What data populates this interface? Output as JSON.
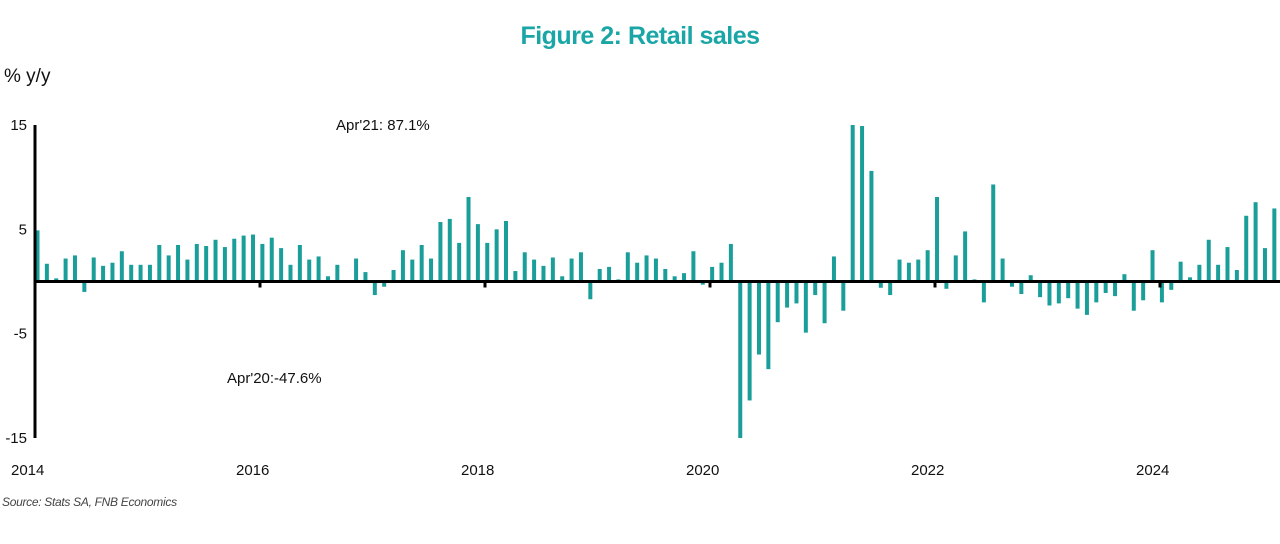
{
  "chart_data": {
    "type": "bar",
    "title": "Figure 2: Retail sales",
    "ylabel": "% y/y",
    "xlabel": "",
    "source": "Source: Stats SA, FNB Economics",
    "ylim": [
      -15,
      15
    ],
    "yticks": [
      15,
      5,
      -5,
      -15
    ],
    "xticks": [
      "2014",
      "2016",
      "2018",
      "2020",
      "2022",
      "2024"
    ],
    "start": "2014-01",
    "frequency": "monthly",
    "grid": false,
    "bar_color": "#1a9e9a",
    "title_color": "#1aa6a6",
    "annotations": [
      {
        "text": "Apr'21: 87.1%"
      },
      {
        "text": "Apr'20:-47.6%"
      }
    ],
    "series": [
      {
        "name": "Retail sales % y/y",
        "values": [
          4.9,
          1.7,
          0.3,
          2.2,
          2.5,
          -1.0,
          2.3,
          1.5,
          1.8,
          2.9,
          1.6,
          1.6,
          1.6,
          3.5,
          2.5,
          3.5,
          2.1,
          3.6,
          3.4,
          4.0,
          3.3,
          4.1,
          4.4,
          4.5,
          3.6,
          4.2,
          3.2,
          1.6,
          3.5,
          2.1,
          2.4,
          0.5,
          1.6,
          0.0,
          2.2,
          0.9,
          -1.3,
          -0.5,
          1.1,
          3.0,
          2.1,
          3.5,
          2.2,
          5.7,
          6.0,
          3.7,
          8.1,
          5.5,
          3.7,
          5.0,
          5.8,
          1.0,
          2.8,
          2.1,
          1.5,
          2.3,
          0.5,
          2.2,
          2.8,
          -1.7,
          1.2,
          1.4,
          0.2,
          2.8,
          1.8,
          2.5,
          2.2,
          1.2,
          0.5,
          0.8,
          2.9,
          -0.3,
          1.4,
          1.8,
          3.6,
          -47.6,
          -11.4,
          -7.0,
          -8.4,
          -3.9,
          -2.5,
          -2.1,
          -4.9,
          -1.3,
          -4.0,
          2.4,
          -2.8,
          87.1,
          14.9,
          10.6,
          -0.6,
          -1.3,
          2.1,
          1.8,
          2.1,
          3.0,
          8.1,
          -0.7,
          2.5,
          4.8,
          0.2,
          -2.0,
          9.3,
          2.2,
          -0.5,
          -1.2,
          0.6,
          -1.5,
          -2.3,
          -2.1,
          -1.6,
          -2.6,
          -3.2,
          -2.0,
          -1.1,
          -1.4,
          0.7,
          -2.8,
          -1.8,
          3.0,
          -2.0,
          -0.8,
          1.9,
          0.4,
          1.6,
          4.0,
          1.6,
          3.3,
          1.1,
          6.3,
          7.6,
          3.2,
          7.0
        ]
      }
    ]
  }
}
